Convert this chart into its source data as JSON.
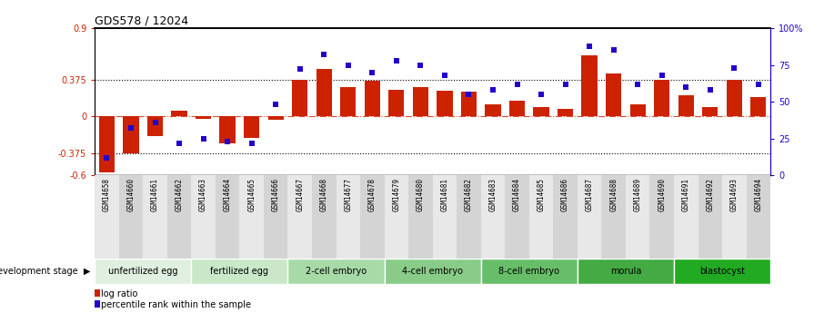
{
  "title": "GDS578 / 12024",
  "samples": [
    "GSM14658",
    "GSM14660",
    "GSM14661",
    "GSM14662",
    "GSM14663",
    "GSM14664",
    "GSM14665",
    "GSM14666",
    "GSM14667",
    "GSM14668",
    "GSM14677",
    "GSM14678",
    "GSM14679",
    "GSM14680",
    "GSM14681",
    "GSM14682",
    "GSM14683",
    "GSM14684",
    "GSM14685",
    "GSM14686",
    "GSM14687",
    "GSM14688",
    "GSM14689",
    "GSM14690",
    "GSM14691",
    "GSM14692",
    "GSM14693",
    "GSM14694"
  ],
  "log_ratio": [
    -0.57,
    -0.38,
    -0.2,
    0.06,
    -0.02,
    -0.27,
    -0.22,
    -0.03,
    0.375,
    0.48,
    0.3,
    0.36,
    0.27,
    0.3,
    0.26,
    0.25,
    0.12,
    0.16,
    0.1,
    0.08,
    0.62,
    0.44,
    0.12,
    0.375,
    0.22,
    0.1,
    0.375,
    0.2
  ],
  "percentile": [
    12,
    32,
    36,
    22,
    25,
    23,
    22,
    48,
    72,
    82,
    75,
    70,
    78,
    75,
    68,
    55,
    58,
    62,
    55,
    62,
    88,
    85,
    62,
    68,
    60,
    58,
    73,
    62
  ],
  "stages": [
    {
      "label": "unfertilized egg",
      "start": 0,
      "end": 3,
      "color": "#e0f0e0"
    },
    {
      "label": "fertilized egg",
      "start": 4,
      "end": 7,
      "color": "#c8e8c8"
    },
    {
      "label": "2-cell embryo",
      "start": 8,
      "end": 11,
      "color": "#a8daa8"
    },
    {
      "label": "4-cell embryo",
      "start": 12,
      "end": 15,
      "color": "#88cc88"
    },
    {
      "label": "8-cell embryo",
      "start": 16,
      "end": 19,
      "color": "#68be68"
    },
    {
      "label": "morula",
      "start": 20,
      "end": 23,
      "color": "#44aa44"
    },
    {
      "label": "blastocyst",
      "start": 24,
      "end": 27,
      "color": "#22aa22"
    }
  ],
  "bar_color": "#cc2200",
  "dot_color": "#2200cc",
  "ylim_left": [
    -0.6,
    0.9
  ],
  "ylim_right": [
    0,
    100
  ],
  "yticks_left": [
    -0.6,
    -0.375,
    0,
    0.375,
    0.9
  ],
  "yticks_left_labels": [
    "-0.6",
    "-0.375",
    "0",
    "0.375",
    "0.9"
  ],
  "yticks_right": [
    0,
    25,
    50,
    75,
    100
  ],
  "yticks_right_labels": [
    "0",
    "25",
    "50",
    "75",
    "100%"
  ],
  "hlines": [
    0.375,
    -0.375
  ],
  "title_fontsize": 9,
  "tick_fontsize": 7,
  "sample_fontsize": 5.5,
  "stage_fontsize": 7,
  "legend_fontsize": 7,
  "dev_stage_label": "development stage",
  "legend_bar": "log ratio",
  "legend_dot": "percentile rank within the sample"
}
